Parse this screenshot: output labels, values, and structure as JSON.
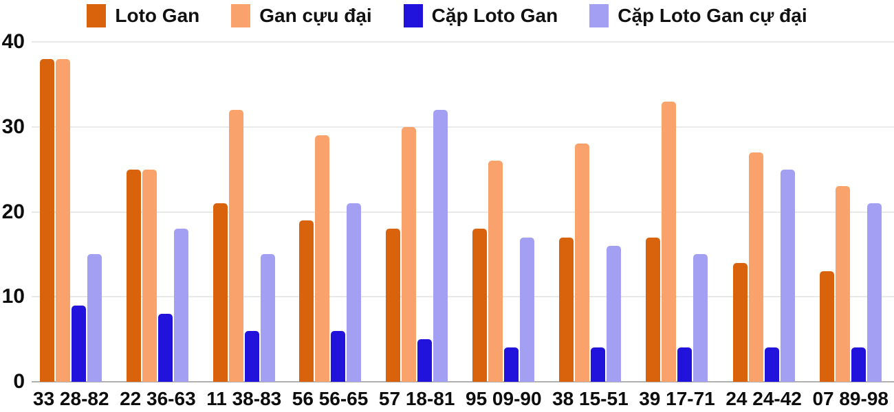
{
  "chart_data": {
    "type": "bar",
    "title": "",
    "xlabel": "",
    "ylabel": "",
    "categories": [
      "33 28-82",
      "22 36-63",
      "11 38-83",
      "56 56-65",
      "57 18-81",
      "95 09-90",
      "38 15-51",
      "39 17-71",
      "24 24-42",
      "07 89-98"
    ],
    "series": [
      {
        "name": "Loto Gan",
        "color": "#D9620D",
        "values": [
          38,
          25,
          21,
          19,
          18,
          18,
          17,
          17,
          14,
          13
        ]
      },
      {
        "name": "Gan cựu đại",
        "color": "#FAA26B",
        "values": [
          38,
          25,
          32,
          29,
          30,
          26,
          28,
          33,
          27,
          23
        ]
      },
      {
        "name": "Cặp Loto Gan",
        "color": "#2213DC",
        "values": [
          9,
          8,
          6,
          6,
          5,
          4,
          4,
          4,
          4,
          4
        ]
      },
      {
        "name": "Cặp Loto Gan cự đại",
        "color": "#A3A0F3",
        "values": [
          15,
          18,
          15,
          21,
          32,
          17,
          16,
          15,
          25,
          21
        ]
      }
    ],
    "ylim": [
      0,
      40
    ],
    "yticks": [
      0,
      10,
      20,
      30,
      40
    ],
    "grid": true,
    "legend_position": "top",
    "grid_color": "#E9E9E9",
    "baseline_color": "#B0B0B0",
    "text_color": "#0d0d0d",
    "background": "#FFFFFF"
  }
}
